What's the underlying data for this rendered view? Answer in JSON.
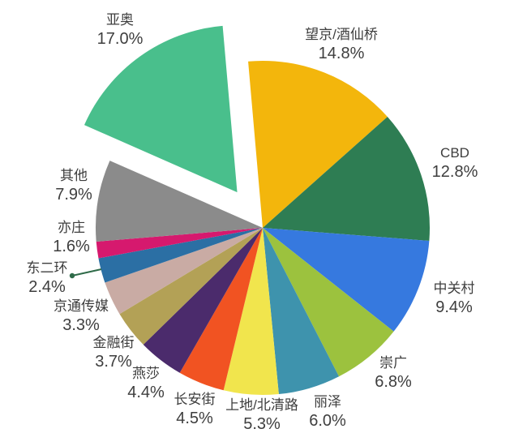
{
  "chart_data": {
    "type": "pie",
    "title": "",
    "value_unit": "%",
    "legend": "none",
    "label_style": "name above percent, outside slices",
    "slices": [
      {
        "label": "望京/酒仙桥",
        "value": 14.8,
        "color": "#F3B60C",
        "exploded": false
      },
      {
        "label": "CBD",
        "value": 12.8,
        "color": "#2E7D53",
        "exploded": false
      },
      {
        "label": "中关村",
        "value": 9.4,
        "color": "#3679DF",
        "exploded": false
      },
      {
        "label": "崇广",
        "value": 6.8,
        "color": "#9CC23E",
        "exploded": false
      },
      {
        "label": "丽泽",
        "value": 6.0,
        "color": "#3E93AD",
        "exploded": false
      },
      {
        "label": "上地/北清路",
        "value": 5.3,
        "color": "#F1E54D",
        "exploded": false
      },
      {
        "label": "长安街",
        "value": 4.5,
        "color": "#F15322",
        "exploded": false
      },
      {
        "label": "燕莎",
        "value": 4.4,
        "color": "#4B2B6C",
        "exploded": false
      },
      {
        "label": "金融街",
        "value": 3.7,
        "color": "#B3A156",
        "exploded": false
      },
      {
        "label": "京通传媒",
        "value": 3.3,
        "color": "#C9ABA4",
        "exploded": false
      },
      {
        "label": "东二环",
        "value": 2.4,
        "color": "#2B6FA4",
        "exploded": false
      },
      {
        "label": "亦庄",
        "value": 1.6,
        "color": "#D6196E",
        "exploded": false
      },
      {
        "label": "其他",
        "value": 7.9,
        "color": "#8B8B8B",
        "exploded": false
      },
      {
        "label": "亚奥",
        "value": 17.0,
        "color": "#49BF8C",
        "exploded": true
      }
    ],
    "text_color": "#3E3E3E",
    "background_color": "#FFFFFF"
  }
}
